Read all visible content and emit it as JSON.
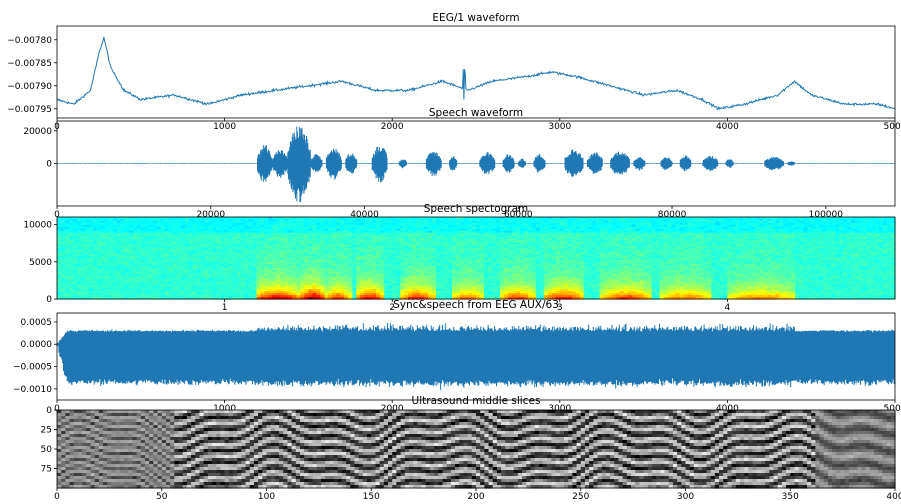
{
  "chart_data": [
    {
      "type": "line",
      "title": "EEG/1 waveform",
      "xlim": [
        0,
        5000
      ],
      "ylim": [
        -0.00797,
        -0.00777
      ],
      "xticks": [
        0,
        1000,
        2000,
        3000,
        4000,
        5000
      ],
      "yticks": [
        -0.0078,
        -0.00785,
        -0.0079,
        -0.00795
      ],
      "xtick_labels": [
        "0",
        "1000",
        "2000",
        "3000",
        "4000",
        "5000"
      ],
      "ytick_labels": [
        "−0.00780",
        "−0.00785",
        "−0.00790",
        "−0.00795"
      ],
      "color": "#1f77b4",
      "x": [
        0,
        100,
        200,
        250,
        280,
        320,
        400,
        500,
        700,
        900,
        1100,
        1300,
        1500,
        1700,
        1900,
        2100,
        2300,
        2450,
        2600,
        2800,
        2950,
        3100,
        3300,
        3500,
        3700,
        3850,
        3950,
        4100,
        4300,
        4400,
        4500,
        4700,
        4900,
        5000
      ],
      "values": [
        -0.00793,
        -0.00794,
        -0.00791,
        -0.00783,
        -0.007795,
        -0.00786,
        -0.00791,
        -0.00793,
        -0.00792,
        -0.00794,
        -0.00792,
        -0.00791,
        -0.0079,
        -0.00789,
        -0.00791,
        -0.00791,
        -0.00789,
        -0.00791,
        -0.00789,
        -0.00788,
        -0.00787,
        -0.00788,
        -0.0079,
        -0.00792,
        -0.00791,
        -0.00793,
        -0.00795,
        -0.00794,
        -0.00792,
        -0.00789,
        -0.00792,
        -0.00794,
        -0.00794,
        -0.00795
      ]
    },
    {
      "type": "line",
      "title": "Speech waveform",
      "xlim": [
        0,
        109000
      ],
      "ylim": [
        -26000,
        26000
      ],
      "xticks": [
        0,
        20000,
        40000,
        60000,
        80000,
        100000
      ],
      "yticks": [
        20000,
        0
      ],
      "xtick_labels": [
        "0",
        "20000",
        "40000",
        "60000",
        "80000",
        "100000"
      ],
      "ytick_labels": [
        "20000",
        "0"
      ],
      "color": "#1f77b4",
      "bursts": [
        {
          "start": 26000,
          "end": 28000,
          "amp": 12000
        },
        {
          "start": 28000,
          "end": 30000,
          "amp": 9000
        },
        {
          "start": 30000,
          "end": 33000,
          "amp": 24000
        },
        {
          "start": 33000,
          "end": 34500,
          "amp": 6000
        },
        {
          "start": 35000,
          "end": 37000,
          "amp": 10000
        },
        {
          "start": 37500,
          "end": 39000,
          "amp": 7000
        },
        {
          "start": 41000,
          "end": 43000,
          "amp": 12000
        },
        {
          "start": 44500,
          "end": 45500,
          "amp": 3000
        },
        {
          "start": 48000,
          "end": 50000,
          "amp": 8000
        },
        {
          "start": 51000,
          "end": 52000,
          "amp": 5000
        },
        {
          "start": 55000,
          "end": 57000,
          "amp": 7000
        },
        {
          "start": 58000,
          "end": 59500,
          "amp": 6000
        },
        {
          "start": 60000,
          "end": 61000,
          "amp": 3000
        },
        {
          "start": 62000,
          "end": 63500,
          "amp": 6000
        },
        {
          "start": 66000,
          "end": 68500,
          "amp": 9000
        },
        {
          "start": 69000,
          "end": 71000,
          "amp": 7000
        },
        {
          "start": 72000,
          "end": 74500,
          "amp": 8000
        },
        {
          "start": 75000,
          "end": 76500,
          "amp": 4500
        },
        {
          "start": 78500,
          "end": 80000,
          "amp": 4500
        },
        {
          "start": 81000,
          "end": 82500,
          "amp": 5000
        },
        {
          "start": 84000,
          "end": 86000,
          "amp": 5000
        },
        {
          "start": 87000,
          "end": 88000,
          "amp": 3000
        },
        {
          "start": 92000,
          "end": 94500,
          "amp": 4500
        },
        {
          "start": 95000,
          "end": 96000,
          "amp": 1500
        }
      ]
    },
    {
      "type": "heatmap",
      "title": "Speech spectogram",
      "xlim": [
        0,
        5
      ],
      "ylim": [
        0,
        11025
      ],
      "xticks": [
        1,
        2,
        3,
        4
      ],
      "yticks": [
        10000,
        5000,
        0
      ],
      "xtick_labels": [
        "1",
        "2",
        "3",
        "4"
      ],
      "ytick_labels": [
        "10000",
        "5000",
        "0"
      ],
      "colormap": "jet",
      "voiced_regions": [
        {
          "start": 1.18,
          "end": 1.45,
          "intensity": 0.85
        },
        {
          "start": 1.45,
          "end": 1.6,
          "intensity": 0.95
        },
        {
          "start": 1.6,
          "end": 1.75,
          "intensity": 0.7
        },
        {
          "start": 1.78,
          "end": 1.95,
          "intensity": 0.8
        },
        {
          "start": 2.05,
          "end": 2.25,
          "intensity": 0.75
        },
        {
          "start": 2.35,
          "end": 2.55,
          "intensity": 0.6
        },
        {
          "start": 2.65,
          "end": 2.85,
          "intensity": 0.7
        },
        {
          "start": 2.9,
          "end": 3.15,
          "intensity": 0.75
        },
        {
          "start": 3.25,
          "end": 3.55,
          "intensity": 0.7
        },
        {
          "start": 3.6,
          "end": 3.9,
          "intensity": 0.6
        },
        {
          "start": 4.0,
          "end": 4.4,
          "intensity": 0.55
        }
      ]
    },
    {
      "type": "line",
      "title": "Sync&speech from EEG AUX/63",
      "xlim": [
        0,
        5000
      ],
      "ylim": [
        -0.00125,
        0.0007
      ],
      "xticks": [
        0,
        1000,
        2000,
        3000,
        4000,
        5000
      ],
      "yticks": [
        0.0005,
        0.0,
        -0.0005,
        -0.001
      ],
      "xtick_labels": [
        "0",
        "1000",
        "2000",
        "3000",
        "4000",
        "5000"
      ],
      "ytick_labels": [
        "0.0005",
        "0.0000",
        "−0.0005",
        "−0.0010"
      ],
      "color": "#1f77b4",
      "upper_envelope": 0.0003,
      "lower_envelope": -0.00085,
      "speech_segment": [
        1200,
        4400
      ]
    },
    {
      "type": "heatmap",
      "title": "Ultrasound middle slices",
      "xlim": [
        0,
        400
      ],
      "ylim": [
        100,
        0
      ],
      "xticks": [
        0,
        50,
        100,
        150,
        200,
        250,
        300,
        350,
        400
      ],
      "yticks": [
        0,
        25,
        50,
        75
      ],
      "xtick_labels": [
        "0",
        "50",
        "100",
        "150",
        "200",
        "250",
        "300",
        "350",
        "400"
      ],
      "ytick_labels": [
        "0",
        "25",
        "50",
        "75"
      ],
      "colormap": "gray"
    }
  ]
}
